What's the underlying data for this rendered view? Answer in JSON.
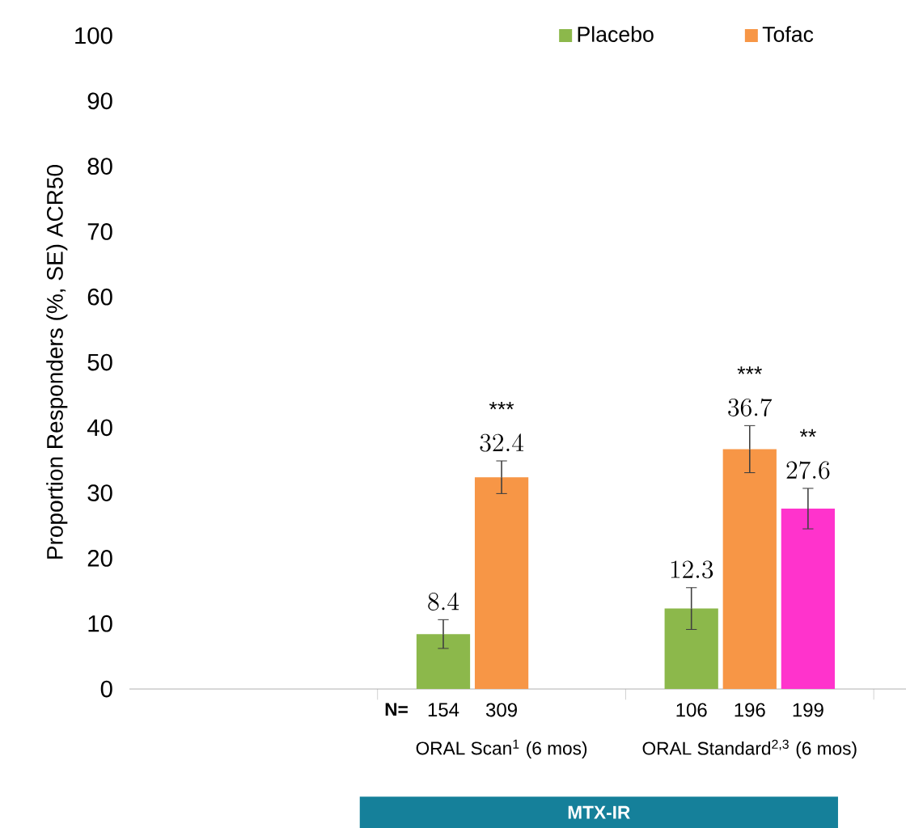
{
  "chart_data": {
    "type": "bar",
    "ylabel": "Proportion Responders (%, SE) ACR50",
    "categories": [
      null,
      "ORAL Scan$^{1}$ (6 mos)",
      "ORAL Standard$^{2,3}$ (6 mos)"
    ],
    "series": [
      {
        "name": "Placebo",
        "color": "#8cb84b",
        "values": [
          null,
          8.4,
          12.3
        ],
        "errors": [
          null,
          2.2,
          3.2
        ]
      },
      {
        "name": "Tofac",
        "color": "#f79646",
        "values": [
          null,
          32.4,
          36.7
        ],
        "errors": [
          null,
          2.5,
          3.6
        ]
      },
      {
        "color": "#ff33cc",
        "values": [
          null,
          null,
          27.6
        ],
        "errors": [
          null,
          null,
          3.1
        ]
      }
    ],
    "ylim": [
      0,
      100
    ],
    "yticks": [
      0,
      10,
      20,
      30,
      40,
      50,
      60,
      70,
      80,
      90,
      100
    ],
    "data_labels": true,
    "grid": false,
    "legend": "top",
    "annotations": [
      "***",
      "***",
      "**",
      "N=",
      "154",
      "309",
      "106",
      "196",
      "199",
      "MTX-IR"
    ]
  }
}
